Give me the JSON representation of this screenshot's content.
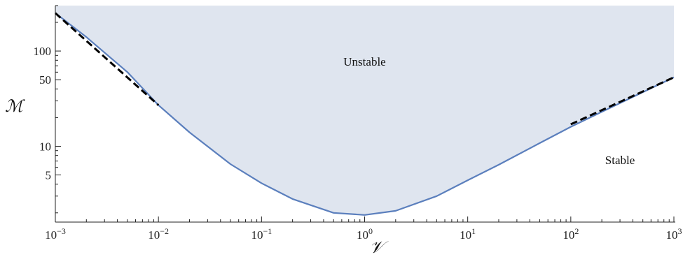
{
  "chart_data": {
    "type": "area",
    "xlabel": "𝒱",
    "ylabel": "ℳ",
    "x_scale": "log",
    "y_scale": "log",
    "xlim": [
      0.001,
      1000
    ],
    "ylim": [
      1.6,
      300
    ],
    "x_ticks": [
      {
        "value": 0.001,
        "base": "10",
        "exp": "−3"
      },
      {
        "value": 0.01,
        "base": "10",
        "exp": "−2"
      },
      {
        "value": 0.1,
        "base": "10",
        "exp": "−1"
      },
      {
        "value": 1,
        "base": "10",
        "exp": "0"
      },
      {
        "value": 10,
        "base": "10",
        "exp": "1"
      },
      {
        "value": 100,
        "base": "10",
        "exp": "2"
      },
      {
        "value": 1000,
        "base": "10",
        "exp": "3"
      }
    ],
    "y_ticks": [
      {
        "value": 5,
        "label": "5"
      },
      {
        "value": 10,
        "label": "10"
      },
      {
        "value": 50,
        "label": "50"
      },
      {
        "value": 100,
        "label": "100"
      }
    ],
    "grid": false,
    "region_labels": [
      {
        "text": "Unstable",
        "x": 1,
        "y": 70
      },
      {
        "text": "Stable",
        "x": 300,
        "y": 6.5
      }
    ],
    "series": [
      {
        "style": "solid",
        "color": "#5b7fbd",
        "x": [
          0.001,
          0.002,
          0.005,
          0.01,
          0.02,
          0.05,
          0.1,
          0.2,
          0.5,
          1,
          2,
          5,
          10,
          20,
          50,
          100,
          200,
          500,
          1000
        ],
        "y": [
          250,
          140,
          60,
          27,
          14,
          6.5,
          4.1,
          2.8,
          2.0,
          1.9,
          2.1,
          3.0,
          4.4,
          6.4,
          10.8,
          16,
          23,
          37,
          53
        ]
      },
      {
        "style": "dashed",
        "color": "#000000",
        "x": [
          0.001,
          0.01
        ],
        "y": [
          250,
          27
        ]
      },
      {
        "style": "dashed",
        "color": "#000000",
        "x": [
          100,
          1000
        ],
        "y": [
          17,
          53
        ]
      }
    ],
    "fill": {
      "color": "#dfe5ef",
      "above_series": 0
    }
  }
}
